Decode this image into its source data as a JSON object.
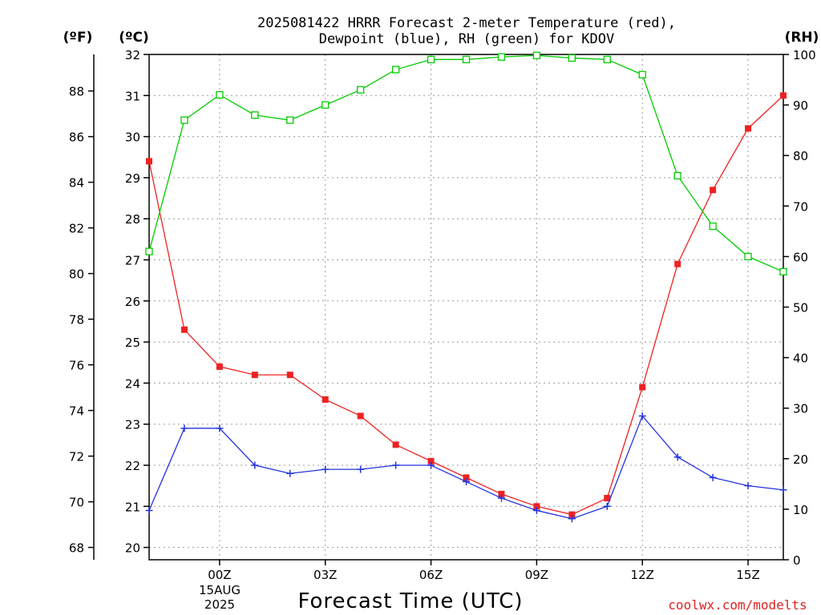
{
  "chart_data": {
    "type": "line",
    "title_line1": "2025081422 HRRR Forecast 2-meter Temperature (red),",
    "title_line2": "Dewpoint (blue), RH (green) for KDOV",
    "left_outer_unit": "(ºF)",
    "left_inner_unit": "(ºC)",
    "right_unit": "(RH)",
    "xlabel": "Forecast Time (UTC)",
    "credit": "coolwx.com/modelts",
    "x_hours": [
      22,
      23,
      24,
      25,
      26,
      27,
      28,
      29,
      30,
      31,
      32,
      33,
      34,
      35,
      36,
      37,
      38,
      39,
      40
    ],
    "x_range": [
      22,
      40
    ],
    "x_ticks": [
      {
        "hour": 24,
        "label": "00Z"
      },
      {
        "hour": 27,
        "label": "03Z"
      },
      {
        "hour": 30,
        "label": "06Z"
      },
      {
        "hour": 33,
        "label": "09Z"
      },
      {
        "hour": 36,
        "label": "12Z"
      },
      {
        "hour": 39,
        "label": "15Z"
      }
    ],
    "date_label_1": "15AUG",
    "date_label_2": "2025",
    "celsius_range": [
      19.7,
      32
    ],
    "celsius_ticks": [
      20,
      21,
      22,
      23,
      24,
      25,
      26,
      27,
      28,
      29,
      30,
      31,
      32
    ],
    "fahrenheit_ticks": [
      68,
      70,
      72,
      74,
      76,
      78,
      80,
      82,
      84,
      86,
      88
    ],
    "rh_range": [
      0,
      100
    ],
    "rh_ticks": [
      0,
      10,
      20,
      30,
      40,
      50,
      60,
      70,
      80,
      90,
      100
    ],
    "colors": {
      "temperature": "#ee2222",
      "dewpoint": "#2233dd",
      "rh": "#00cc00"
    },
    "series": [
      {
        "name": "Temperature",
        "axis": "celsius",
        "marker": "filled-square",
        "values": [
          29.4,
          25.3,
          24.4,
          24.2,
          24.2,
          23.6,
          23.2,
          22.5,
          22.1,
          21.7,
          21.3,
          21.0,
          20.8,
          21.2,
          23.9,
          26.9,
          28.7,
          30.2,
          31.0
        ]
      },
      {
        "name": "Dewpoint",
        "axis": "celsius",
        "marker": "plus",
        "values": [
          20.9,
          22.9,
          22.9,
          22.0,
          21.8,
          21.9,
          21.9,
          22.0,
          22.0,
          21.6,
          21.2,
          20.9,
          20.7,
          21.0,
          23.2,
          22.2,
          21.7,
          21.5,
          21.4
        ]
      },
      {
        "name": "RH",
        "axis": "rh",
        "marker": "open-square",
        "values": [
          61,
          87,
          92,
          88,
          87,
          90,
          93,
          97,
          99,
          99,
          99.5,
          99.8,
          99.3,
          99,
          96,
          76,
          66,
          60,
          57
        ]
      }
    ]
  }
}
